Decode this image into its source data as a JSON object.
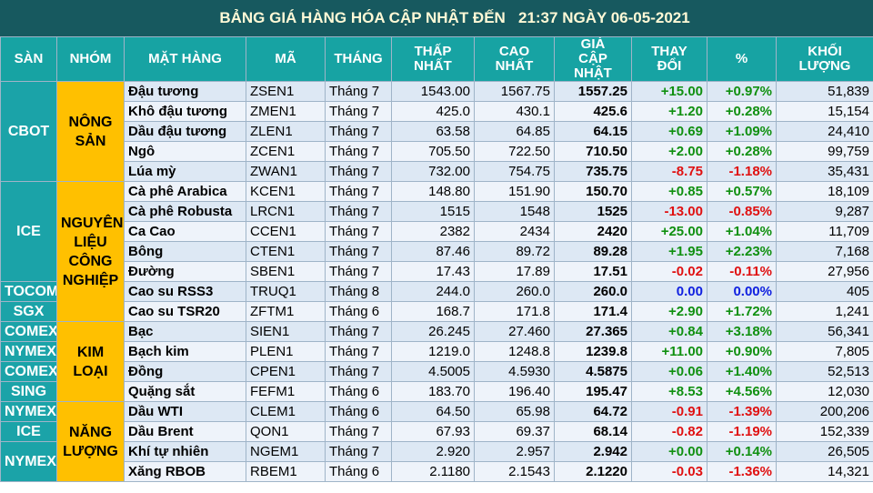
{
  "table": {
    "title": "BẢNG GIÁ HÀNG HÓA CẬP NHẬT ĐẾN   21:37 NGÀY 06-05-2021",
    "columns": [
      "SÀN",
      "NHÓM",
      "MẶT HÀNG",
      "MÃ",
      "THÁNG",
      "THẤP\nNHẤT",
      "CAO\nNHẤT",
      "GIÁ\nCẬP NHẬT",
      "THAY\nĐỔI",
      "%",
      "KHỐI\nLƯỢNG"
    ],
    "groups": [
      {
        "name": "NÔNG\nSẢN",
        "exchanges": [
          {
            "name": "CBOT",
            "items": [
              [
                "Đậu tương",
                "ZSEN1",
                "Tháng 7",
                "1543.00",
                "1567.75",
                "1557.25",
                "+15.00",
                "+0.97%",
                "51,839"
              ],
              [
                "Khô đậu tương",
                "ZMEN1",
                "Tháng 7",
                "425.0",
                "430.1",
                "425.6",
                "+1.20",
                "+0.28%",
                "15,154"
              ],
              [
                "Dầu đậu tương",
                "ZLEN1",
                "Tháng 7",
                "63.58",
                "64.85",
                "64.15",
                "+0.69",
                "+1.09%",
                "24,410"
              ],
              [
                "Ngô",
                "ZCEN1",
                "Tháng 7",
                "705.50",
                "722.50",
                "710.50",
                "+2.00",
                "+0.28%",
                "99,759"
              ],
              [
                "Lúa mỳ",
                "ZWAN1",
                "Tháng 7",
                "732.00",
                "754.75",
                "735.75",
                "-8.75",
                "-1.18%",
                "35,431"
              ]
            ]
          }
        ]
      },
      {
        "name": "NGUYÊN\nLIỆU\nCÔNG\nNGHIỆP",
        "exchanges": [
          {
            "name": "ICE",
            "items": [
              [
                "Cà phê Arabica",
                "KCEN1",
                "Tháng 7",
                "148.80",
                "151.90",
                "150.70",
                "+0.85",
                "+0.57%",
                "18,109"
              ],
              [
                "Cà phê Robusta",
                "LRCN1",
                "Tháng 7",
                "1515",
                "1548",
                "1525",
                "-13.00",
                "-0.85%",
                "9,287"
              ],
              [
                "Ca Cao",
                "CCEN1",
                "Tháng 7",
                "2382",
                "2434",
                "2420",
                "+25.00",
                "+1.04%",
                "11,709"
              ],
              [
                "Bông",
                "CTEN1",
                "Tháng 7",
                "87.46",
                "89.72",
                "89.28",
                "+1.95",
                "+2.23%",
                "7,168"
              ],
              [
                "Đường",
                "SBEN1",
                "Tháng 7",
                "17.43",
                "17.89",
                "17.51",
                "-0.02",
                "-0.11%",
                "27,956"
              ]
            ]
          },
          {
            "name": "TOCOM",
            "items": [
              [
                "Cao su RSS3",
                "TRUQ1",
                "Tháng 8",
                "244.0",
                "260.0",
                "260.0",
                "0.00",
                "0.00%",
                "405"
              ]
            ]
          },
          {
            "name": "SGX",
            "items": [
              [
                "Cao su TSR20",
                "ZFTM1",
                "Tháng 6",
                "168.7",
                "171.8",
                "171.4",
                "+2.90",
                "+1.72%",
                "1,241"
              ]
            ]
          }
        ]
      },
      {
        "name": "KIM\nLOẠI",
        "exchanges": [
          {
            "name": "COMEX",
            "items": [
              [
                "Bạc",
                "SIEN1",
                "Tháng 7",
                "26.245",
                "27.460",
                "27.365",
                "+0.84",
                "+3.18%",
                "56,341"
              ]
            ]
          },
          {
            "name": "NYMEX",
            "items": [
              [
                "Bạch kim",
                "PLEN1",
                "Tháng 7",
                "1219.0",
                "1248.8",
                "1239.8",
                "+11.00",
                "+0.90%",
                "7,805"
              ]
            ]
          },
          {
            "name": "COMEX",
            "items": [
              [
                "Đồng",
                "CPEN1",
                "Tháng 7",
                "4.5005",
                "4.5930",
                "4.5875",
                "+0.06",
                "+1.40%",
                "52,513"
              ]
            ]
          },
          {
            "name": "SING",
            "items": [
              [
                "Quặng sắt",
                "FEFM1",
                "Tháng 6",
                "183.70",
                "196.40",
                "195.47",
                "+8.53",
                "+4.56%",
                "12,030"
              ]
            ]
          }
        ]
      },
      {
        "name": "NĂNG\nLƯỢNG",
        "exchanges": [
          {
            "name": "NYMEX",
            "items": [
              [
                "Dầu WTI",
                "CLEM1",
                "Tháng 6",
                "64.50",
                "65.98",
                "64.72",
                "-0.91",
                "-1.39%",
                "200,206"
              ]
            ]
          },
          {
            "name": "ICE",
            "items": [
              [
                "Dầu Brent",
                "QON1",
                "Tháng 7",
                "67.93",
                "69.37",
                "68.14",
                "-0.82",
                "-1.19%",
                "152,339"
              ]
            ]
          },
          {
            "name": "NYMEX",
            "items": [
              [
                "Khí tự nhiên",
                "NGEM1",
                "Tháng 7",
                "2.920",
                "2.957",
                "2.942",
                "+0.00",
                "+0.14%",
                "26,505"
              ],
              [
                "Xăng RBOB",
                "RBEM1",
                "Tháng 6",
                "2.1180",
                "2.1543",
                "2.1220",
                "-0.03",
                "-1.36%",
                "14,321"
              ]
            ]
          }
        ]
      }
    ]
  }
}
